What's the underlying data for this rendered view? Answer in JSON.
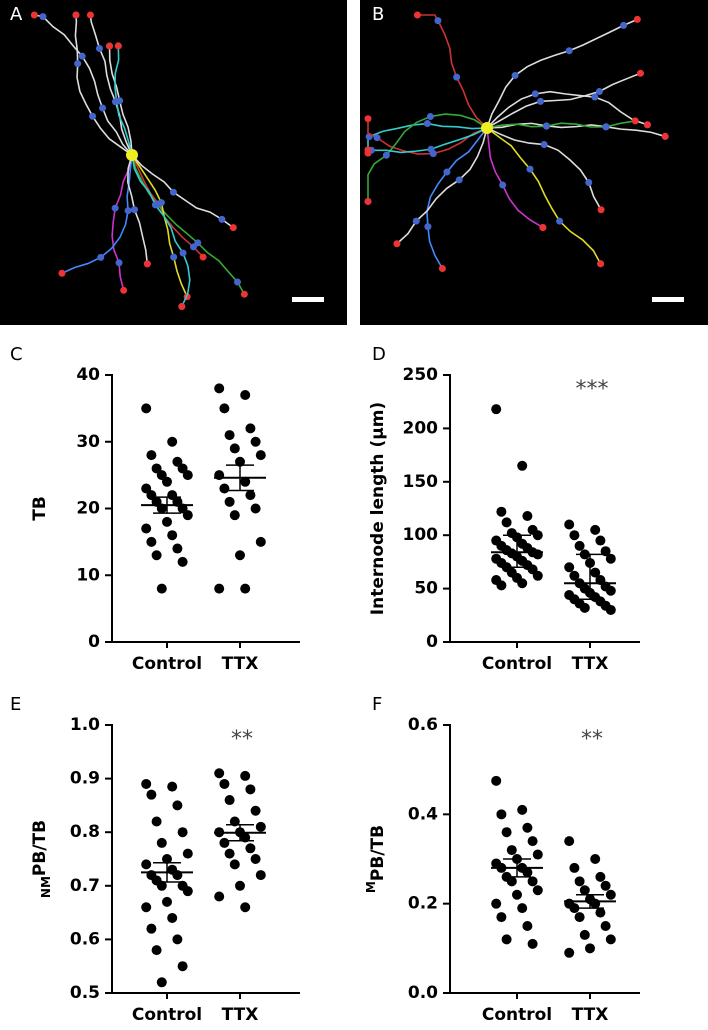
{
  "images": [
    {
      "label": "A"
    },
    {
      "label": "B"
    }
  ],
  "chart_data": [
    {
      "type": "strip",
      "label": "C",
      "ylabel": "TB",
      "categories": [
        "Control",
        "TTX"
      ],
      "ylim": [
        0,
        40
      ],
      "yticks": [
        0,
        10,
        20,
        30,
        40
      ],
      "color": "#000000",
      "groups": [
        {
          "values": [
            35,
            30,
            28,
            27,
            26,
            26,
            25,
            25,
            24,
            23,
            22,
            22,
            21,
            21,
            20,
            20,
            19,
            18,
            17,
            16,
            15,
            14,
            13,
            12,
            8
          ],
          "center": 20.5,
          "lower": 19.3,
          "upper": 21.7
        },
        {
          "values": [
            38,
            37,
            35,
            32,
            31,
            30,
            29,
            28,
            27,
            25,
            24,
            23,
            22,
            21,
            20,
            19,
            15,
            13,
            8,
            8
          ],
          "center": 24.6,
          "lower": 22.7,
          "upper": 26.5
        }
      ]
    },
    {
      "type": "strip",
      "label": "D",
      "ylabel": "Internode length (µm)",
      "categories": [
        "Control",
        "TTX"
      ],
      "ylim": [
        0,
        250
      ],
      "yticks": [
        0,
        50,
        100,
        150,
        200,
        250
      ],
      "color": "#000000",
      "annotation": "***",
      "groups": [
        {
          "values": [
            218,
            165,
            122,
            118,
            112,
            105,
            102,
            100,
            98,
            95,
            92,
            90,
            88,
            86,
            84,
            83,
            82,
            80,
            78,
            76,
            74,
            72,
            70,
            68,
            65,
            62,
            60,
            58,
            55,
            53
          ],
          "center": 84,
          "lower": 70,
          "upper": 100
        },
        {
          "values": [
            110,
            105,
            100,
            95,
            90,
            85,
            82,
            78,
            74,
            70,
            65,
            62,
            58,
            55,
            52,
            50,
            48,
            46,
            44,
            42,
            40,
            38,
            36,
            34,
            32,
            30
          ],
          "center": 55,
          "lower": 40,
          "upper": 82
        }
      ]
    },
    {
      "type": "strip",
      "label": "E",
      "ylabel_prefix": "NM",
      "ylabel_prefix_position": "sub",
      "ylabel": "PB/TB",
      "categories": [
        "Control",
        "TTX"
      ],
      "ylim": [
        0.5,
        1
      ],
      "yticks": [
        0.5,
        0.6,
        0.7,
        0.8,
        0.9,
        {
          "value": 1,
          "label": "1.0"
        }
      ],
      "color": "#000000",
      "annotation": "**",
      "groups": [
        {
          "values": [
            0.89,
            0.885,
            0.87,
            0.85,
            0.82,
            0.8,
            0.78,
            0.76,
            0.75,
            0.74,
            0.73,
            0.72,
            0.72,
            0.71,
            0.7,
            0.7,
            0.69,
            0.67,
            0.66,
            0.64,
            0.62,
            0.6,
            0.58,
            0.55,
            0.52
          ],
          "center": 0.725,
          "lower": 0.707,
          "upper": 0.743
        },
        {
          "values": [
            0.91,
            0.905,
            0.89,
            0.88,
            0.86,
            0.84,
            0.82,
            0.81,
            0.8,
            0.8,
            0.79,
            0.78,
            0.77,
            0.76,
            0.75,
            0.74,
            0.72,
            0.7,
            0.68,
            0.66
          ],
          "center": 0.799,
          "lower": 0.784,
          "upper": 0.814
        }
      ]
    },
    {
      "type": "strip",
      "label": "F",
      "ylabel_prefix": "M",
      "ylabel_prefix_position": "super",
      "ylabel": "PB/TB",
      "categories": [
        "Control",
        "TTX"
      ],
      "ylim": [
        0,
        0.6
      ],
      "yticks": [
        {
          "value": 0,
          "label": "0.0"
        },
        0.2,
        0.4,
        0.6
      ],
      "color": "#000000",
      "annotation": "**",
      "groups": [
        {
          "values": [
            0.475,
            0.41,
            0.4,
            0.37,
            0.36,
            0.34,
            0.32,
            0.31,
            0.3,
            0.29,
            0.28,
            0.28,
            0.27,
            0.26,
            0.25,
            0.25,
            0.23,
            0.22,
            0.2,
            0.19,
            0.17,
            0.15,
            0.12,
            0.11
          ],
          "center": 0.28,
          "lower": 0.26,
          "upper": 0.3
        },
        {
          "values": [
            0.34,
            0.3,
            0.28,
            0.26,
            0.25,
            0.24,
            0.23,
            0.22,
            0.21,
            0.2,
            0.2,
            0.19,
            0.18,
            0.17,
            0.15,
            0.13,
            0.12,
            0.1,
            0.09
          ],
          "center": 0.205,
          "lower": 0.19,
          "upper": 0.22
        }
      ]
    }
  ]
}
